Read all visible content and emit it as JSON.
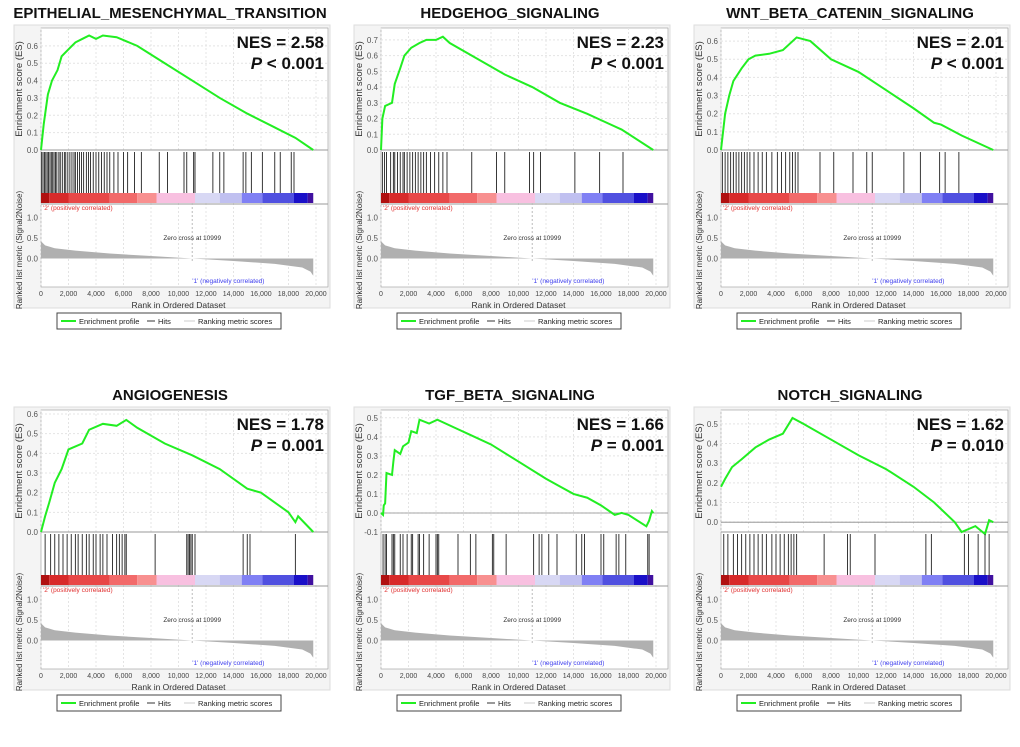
{
  "common": {
    "es_ylabel": "Enrichment score (ES)",
    "metric_ylabel": "Ranked list metric (Signal2Noise)",
    "xlabel": "Rank in Ordered Dataset",
    "pos_label": "'2' (positively correlated)",
    "neg_label": "'1' (negatively correlated)",
    "zero_cross": "Zero cross at 10999",
    "legend": [
      "Enrichment profile",
      "Hits",
      "Ranking metric scores"
    ],
    "x_ticks": [
      "0",
      "2,000",
      "4,000",
      "6,000",
      "8,000",
      "10,000",
      "12,000",
      "14,000",
      "16,000",
      "18,000",
      "20,000"
    ],
    "metric_ticks": [
      "1.0",
      "0.5",
      "0.0"
    ],
    "colors": {
      "profile": "#22ee22",
      "hits": "#000000",
      "metric": "#b0b0b0",
      "pos": "#ee2222",
      "neg": "#3333ff"
    }
  },
  "chart_data": [
    {
      "type": "line",
      "title": "EPITHELIAL_MESENCHYMAL_TRANSITION",
      "nes": "NES = 2.58",
      "p_label": "P",
      "p_text": " <  0.001",
      "ylim": [
        0,
        0.68
      ],
      "yticks": [
        "0.0",
        "0.1",
        "0.2",
        "0.3",
        "0.4",
        "0.5",
        "0.6"
      ],
      "profile": [
        [
          0,
          0
        ],
        [
          200,
          0.15
        ],
        [
          500,
          0.32
        ],
        [
          800,
          0.4
        ],
        [
          1200,
          0.46
        ],
        [
          1500,
          0.54
        ],
        [
          2000,
          0.58
        ],
        [
          2500,
          0.62
        ],
        [
          3000,
          0.64
        ],
        [
          3500,
          0.66
        ],
        [
          4000,
          0.64
        ],
        [
          4500,
          0.66
        ],
        [
          5500,
          0.65
        ],
        [
          7000,
          0.6
        ],
        [
          9000,
          0.5
        ],
        [
          11000,
          0.4
        ],
        [
          13000,
          0.3
        ],
        [
          15000,
          0.21
        ],
        [
          17000,
          0.13
        ],
        [
          18500,
          0.07
        ],
        [
          19800,
          0
        ]
      ],
      "hits": [
        50,
        150,
        250,
        350,
        450,
        550,
        650,
        750,
        850,
        950,
        1050,
        1150,
        1300,
        1400,
        1550,
        1700,
        1800,
        1950,
        2100,
        2250,
        2400,
        2500,
        2650,
        2800,
        2950,
        3100,
        3300,
        3450,
        3600,
        3800,
        4000,
        4200,
        4400,
        4600,
        4800,
        5000,
        5300,
        5600,
        6000,
        6300,
        6800,
        7300,
        8600,
        9200,
        10400,
        10600,
        11100,
        11200,
        12500,
        13000,
        13300,
        14700,
        14900,
        15300,
        16100,
        17000,
        17400,
        18200,
        18400
      ]
    },
    {
      "type": "line",
      "title": "HEDGEHOG_SIGNALING",
      "nes": "NES = 2.23",
      "p_label": "P",
      "p_text": " <  0.001",
      "ylim": [
        0,
        0.75
      ],
      "yticks": [
        "0.0",
        "0.1",
        "0.2",
        "0.3",
        "0.4",
        "0.5",
        "0.6",
        "0.7"
      ],
      "profile": [
        [
          0,
          0
        ],
        [
          100,
          0.2
        ],
        [
          300,
          0.28
        ],
        [
          800,
          0.3
        ],
        [
          1000,
          0.42
        ],
        [
          1400,
          0.52
        ],
        [
          1700,
          0.6
        ],
        [
          2200,
          0.65
        ],
        [
          2800,
          0.68
        ],
        [
          3300,
          0.7
        ],
        [
          4000,
          0.7
        ],
        [
          4500,
          0.72
        ],
        [
          5000,
          0.68
        ],
        [
          7000,
          0.58
        ],
        [
          9000,
          0.48
        ],
        [
          11000,
          0.4
        ],
        [
          13000,
          0.3
        ],
        [
          15000,
          0.23
        ],
        [
          16000,
          0.19
        ],
        [
          17500,
          0.13
        ],
        [
          19800,
          0
        ]
      ],
      "hits": [
        100,
        250,
        400,
        700,
        900,
        1000,
        1200,
        1400,
        1600,
        1700,
        1900,
        2100,
        2300,
        2500,
        2700,
        2900,
        3100,
        3300,
        3600,
        3900,
        4200,
        4500,
        4800,
        6600,
        8400,
        9000,
        10800,
        11100,
        11600,
        14100,
        15900,
        17600
      ]
    },
    {
      "type": "line",
      "title": "WNT_BETA_CATENIN_SIGNALING",
      "nes": "NES = 2.01",
      "p_label": "P",
      "p_text": " <  0.001",
      "ylim": [
        0,
        0.65
      ],
      "yticks": [
        "0.0",
        "0.1",
        "0.2",
        "0.3",
        "0.4",
        "0.5",
        "0.6"
      ],
      "profile": [
        [
          0,
          0
        ],
        [
          300,
          0.2
        ],
        [
          600,
          0.3
        ],
        [
          900,
          0.38
        ],
        [
          1500,
          0.45
        ],
        [
          2000,
          0.5
        ],
        [
          2500,
          0.52
        ],
        [
          3500,
          0.53
        ],
        [
          4500,
          0.55
        ],
        [
          5500,
          0.62
        ],
        [
          6500,
          0.6
        ],
        [
          8000,
          0.5
        ],
        [
          10000,
          0.43
        ],
        [
          12000,
          0.33
        ],
        [
          14000,
          0.23
        ],
        [
          15500,
          0.15
        ],
        [
          16000,
          0.14
        ],
        [
          17500,
          0.08
        ],
        [
          19800,
          0
        ]
      ],
      "hits": [
        100,
        300,
        500,
        700,
        900,
        1100,
        1300,
        1500,
        1700,
        1900,
        2100,
        2400,
        2700,
        3000,
        3300,
        3700,
        4100,
        4400,
        4700,
        5000,
        5200,
        5400,
        5600,
        7200,
        8200,
        9600,
        10600,
        11000,
        13300,
        14500,
        15900,
        16300,
        17300
      ]
    },
    {
      "type": "line",
      "title": "ANGIOGENESIS",
      "nes": "NES = 1.78",
      "p_label": "P",
      "p_text": " = 0.001",
      "ylim": [
        0,
        0.6
      ],
      "yticks": [
        "0.0",
        "0.1",
        "0.2",
        "0.3",
        "0.4",
        "0.5",
        "0.6"
      ],
      "profile": [
        [
          0,
          0
        ],
        [
          300,
          0.08
        ],
        [
          600,
          0.15
        ],
        [
          1000,
          0.25
        ],
        [
          1500,
          0.32
        ],
        [
          2000,
          0.42
        ],
        [
          3000,
          0.45
        ],
        [
          3500,
          0.52
        ],
        [
          4500,
          0.55
        ],
        [
          5500,
          0.54
        ],
        [
          6200,
          0.57
        ],
        [
          7000,
          0.53
        ],
        [
          9000,
          0.45
        ],
        [
          11000,
          0.39
        ],
        [
          13000,
          0.32
        ],
        [
          15000,
          0.22
        ],
        [
          16000,
          0.2
        ],
        [
          18000,
          0.1
        ],
        [
          18500,
          0.05
        ],
        [
          18700,
          0.08
        ],
        [
          19800,
          0
        ]
      ],
      "hits": [
        300,
        700,
        1000,
        1300,
        1600,
        1900,
        2200,
        2500,
        2700,
        3000,
        3300,
        3500,
        3800,
        4000,
        4300,
        4500,
        4800,
        5200,
        5500,
        5700,
        5900,
        6100,
        6200,
        8300,
        10600,
        10700,
        10800,
        10900,
        11000,
        11200,
        14700,
        15000,
        15200,
        18500
      ]
    },
    {
      "type": "line",
      "title": "TGF_BETA_SIGNALING",
      "nes": "NES = 1.66",
      "p_label": "P",
      "p_text": " = 0.001",
      "ylim": [
        -0.1,
        0.52
      ],
      "yticks": [
        "-0.1",
        "0.0",
        "0.1",
        "0.2",
        "0.3",
        "0.4",
        "0.5"
      ],
      "profile": [
        [
          0,
          0
        ],
        [
          150,
          -0.01
        ],
        [
          200,
          0.04
        ],
        [
          300,
          0.05
        ],
        [
          400,
          0.21
        ],
        [
          800,
          0.2
        ],
        [
          900,
          0.27
        ],
        [
          1000,
          0.33
        ],
        [
          1400,
          0.31
        ],
        [
          1600,
          0.35
        ],
        [
          2000,
          0.37
        ],
        [
          2200,
          0.43
        ],
        [
          2600,
          0.42
        ],
        [
          2800,
          0.49
        ],
        [
          3500,
          0.47
        ],
        [
          4100,
          0.49
        ],
        [
          5600,
          0.44
        ],
        [
          6500,
          0.41
        ],
        [
          8000,
          0.36
        ],
        [
          10000,
          0.27
        ],
        [
          12000,
          0.18
        ],
        [
          13000,
          0.14
        ],
        [
          14000,
          0.1
        ],
        [
          15000,
          0.08
        ],
        [
          16000,
          0.04
        ],
        [
          17000,
          -0.01
        ],
        [
          17500,
          0
        ],
        [
          18000,
          -0.01
        ],
        [
          19300,
          -0.07
        ],
        [
          19500,
          -0.04
        ],
        [
          19700,
          0.01
        ],
        [
          19800,
          0
        ]
      ],
      "hits": [
        150,
        300,
        400,
        800,
        900,
        1000,
        1400,
        1600,
        1900,
        2200,
        2300,
        2700,
        2800,
        3100,
        3500,
        4000,
        4100,
        4200,
        5600,
        6500,
        6900,
        8100,
        8200,
        9100,
        11100,
        11500,
        11700,
        12200,
        12800,
        14200,
        14600,
        14800,
        16000,
        16200,
        17100,
        17300,
        17800,
        19400,
        19500
      ]
    },
    {
      "type": "line",
      "title": "NOTCH_SIGNALING",
      "nes": "NES = 1.62",
      "p_label": "P",
      "p_text": " = 0.010",
      "ylim": [
        -0.05,
        0.55
      ],
      "yticks": [
        "0.0",
        "0.1",
        "0.2",
        "0.3",
        "0.4",
        "0.5"
      ],
      "profile": [
        [
          0,
          0.18
        ],
        [
          300,
          0.22
        ],
        [
          800,
          0.28
        ],
        [
          1500,
          0.32
        ],
        [
          2500,
          0.38
        ],
        [
          3500,
          0.42
        ],
        [
          4500,
          0.45
        ],
        [
          5200,
          0.53
        ],
        [
          6000,
          0.5
        ],
        [
          8000,
          0.42
        ],
        [
          10000,
          0.34
        ],
        [
          12000,
          0.27
        ],
        [
          14000,
          0.18
        ],
        [
          15500,
          0.1
        ],
        [
          17000,
          0
        ],
        [
          17500,
          -0.05
        ],
        [
          18500,
          -0.02
        ],
        [
          19200,
          -0.06
        ],
        [
          19500,
          0.01
        ],
        [
          19800,
          0
        ]
      ],
      "hits": [
        200,
        500,
        900,
        1200,
        1500,
        1800,
        2100,
        2400,
        2700,
        3000,
        3300,
        3700,
        4000,
        4300,
        4600,
        4900,
        5100,
        5300,
        5500,
        7500,
        9200,
        9400,
        11200,
        14900,
        15300,
        17700,
        18000,
        18700,
        19200,
        19500
      ]
    }
  ],
  "metric_profile": [
    [
      0,
      0.42
    ],
    [
      300,
      0.32
    ],
    [
      1000,
      0.25
    ],
    [
      2500,
      0.19
    ],
    [
      5000,
      0.12
    ],
    [
      8000,
      0.06
    ],
    [
      10999,
      0
    ],
    [
      14000,
      -0.06
    ],
    [
      17000,
      -0.13
    ],
    [
      19000,
      -0.22
    ],
    [
      19600,
      -0.32
    ],
    [
      19800,
      -0.42
    ]
  ]
}
